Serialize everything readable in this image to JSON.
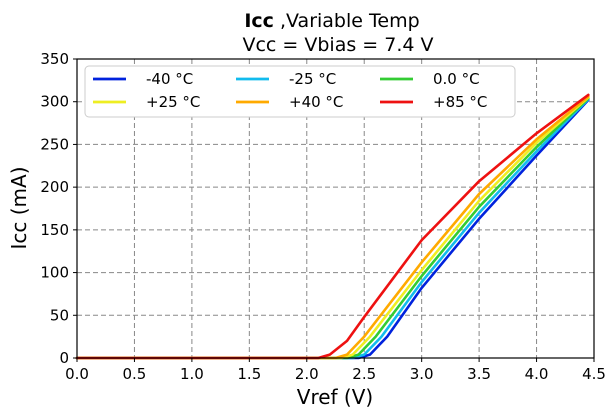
{
  "chart_data": {
    "type": "line",
    "title": {
      "bold": "Icc",
      "rest": " ,Variable Temp",
      "line2": "Vcc = Vbias = 7.4 V"
    },
    "xlabel": "Vref (V)",
    "ylabel": "Icc (mA)",
    "xlim": [
      0.0,
      4.5
    ],
    "ylim": [
      0,
      350
    ],
    "xticks": [
      "0.0",
      "0.5",
      "1.0",
      "1.5",
      "2.0",
      "2.5",
      "3.0",
      "3.5",
      "4.0",
      "4.5"
    ],
    "yticks": [
      "0",
      "50",
      "100",
      "150",
      "200",
      "250",
      "300",
      "350"
    ],
    "grid": true,
    "legend_position": "top-left",
    "series": [
      {
        "name": "-40 °C",
        "color": "#0022dd",
        "x": [
          0.0,
          2.0,
          2.45,
          2.55,
          2.7,
          3.0,
          3.5,
          4.0,
          4.45
        ],
        "y": [
          0,
          0,
          0,
          4,
          25,
          82,
          163,
          237,
          302
        ]
      },
      {
        "name": "-25 °C",
        "color": "#11bbee",
        "x": [
          0.0,
          2.0,
          2.4,
          2.5,
          2.65,
          3.0,
          3.5,
          4.0,
          4.45
        ],
        "y": [
          0,
          0,
          0,
          4,
          25,
          89,
          170,
          242,
          303
        ]
      },
      {
        "name": "0.0 °C",
        "color": "#33cc33",
        "x": [
          0.0,
          2.0,
          2.35,
          2.45,
          2.6,
          3.0,
          3.5,
          4.0,
          4.45
        ],
        "y": [
          0,
          0,
          0,
          4,
          25,
          96,
          177,
          247,
          304
        ]
      },
      {
        "name": "+25 °C",
        "color": "#eeee22",
        "x": [
          0.0,
          2.0,
          2.3,
          2.4,
          2.55,
          3.0,
          3.5,
          4.0,
          4.45
        ],
        "y": [
          0,
          0,
          0,
          4,
          25,
          103,
          184,
          252,
          305
        ]
      },
      {
        "name": "+40 °C",
        "color": "#ffaa00",
        "x": [
          0.0,
          2.0,
          2.25,
          2.35,
          2.5,
          3.0,
          3.5,
          4.0,
          4.45
        ],
        "y": [
          0,
          0,
          0,
          4,
          25,
          112,
          192,
          256,
          306
        ]
      },
      {
        "name": "+85 °C",
        "color": "#ee1111",
        "x": [
          0.0,
          2.0,
          2.1,
          2.2,
          2.35,
          2.5,
          3.0,
          3.5,
          4.0,
          4.45
        ],
        "y": [
          0,
          0,
          0,
          4,
          20,
          48,
          138,
          207,
          263,
          308
        ]
      }
    ]
  }
}
